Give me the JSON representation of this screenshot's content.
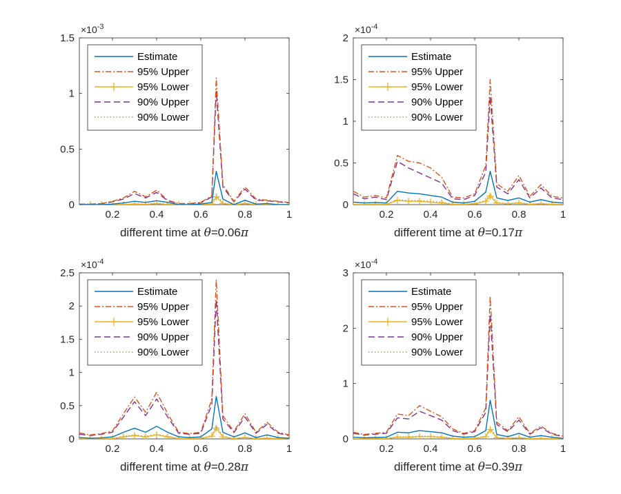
{
  "colors": {
    "estimate": "#0072BD",
    "upper95": "#D95319",
    "lower95": "#EDB120",
    "upper90": "#7E2F8E",
    "lower90": "#A2A36A",
    "axis": "#262626",
    "background": "#ffffff"
  },
  "legend_entries": [
    "Estimate",
    "95% Upper",
    "95% Lower",
    "90% Upper",
    "90% Lower"
  ],
  "x_axis": {
    "range": [
      0.05,
      1.0
    ],
    "ticks": [
      0.2,
      0.4,
      0.6,
      0.8,
      1
    ],
    "tick_labels": [
      "0.2",
      "0.4",
      "0.6",
      "0.8",
      "1"
    ],
    "points": [
      0.05,
      0.1,
      0.15,
      0.2,
      0.25,
      0.3,
      0.35,
      0.4,
      0.45,
      0.5,
      0.55,
      0.6,
      0.65,
      0.67,
      0.7,
      0.75,
      0.8,
      0.85,
      0.9,
      0.95,
      1.0
    ]
  },
  "chart_data": [
    {
      "type": "line",
      "xlabel_prefix": "different time at ",
      "theta_symbol": "θ",
      "theta_value": "=0.06",
      "pi_symbol": "π",
      "exponent_base": "×10",
      "exponent_power": "-3",
      "ylim": [
        0,
        1.5
      ],
      "y_ticks": [
        0,
        0.5,
        1,
        1.5
      ],
      "y_tick_labels": [
        "0",
        "0.5",
        "1",
        "1.5"
      ],
      "series": [
        {
          "name": "Estimate",
          "values": [
            0,
            0,
            0,
            0.005,
            0.015,
            0.03,
            0.02,
            0.035,
            0.02,
            0,
            0,
            0.005,
            0.02,
            0.3,
            0.05,
            0,
            0.04,
            0.005,
            0.01,
            0,
            0
          ]
        },
        {
          "name": "95% Upper",
          "values": [
            0.005,
            0.005,
            0.01,
            0.03,
            0.06,
            0.12,
            0.07,
            0.13,
            0.04,
            0.01,
            0.01,
            0.02,
            0.08,
            1.14,
            0.18,
            0.03,
            0.16,
            0.05,
            0.04,
            0.03,
            0.02
          ]
        },
        {
          "name": "95% Lower",
          "values": [
            0,
            0,
            0,
            0,
            0,
            0.005,
            0.002,
            0.01,
            0.002,
            0,
            0,
            0,
            0.005,
            0.07,
            0.01,
            0,
            0.01,
            0,
            0,
            0,
            0
          ]
        },
        {
          "name": "90% Upper",
          "values": [
            0.004,
            0.004,
            0.008,
            0.025,
            0.05,
            0.1,
            0.06,
            0.11,
            0.035,
            0.008,
            0.008,
            0.015,
            0.07,
            1.02,
            0.16,
            0.025,
            0.14,
            0.04,
            0.035,
            0.025,
            0.015
          ]
        },
        {
          "name": "90% Lower",
          "values": [
            0,
            0,
            0,
            0.001,
            0.003,
            0.008,
            0.005,
            0.012,
            0.005,
            0,
            0,
            0.001,
            0.007,
            0.09,
            0.015,
            0.001,
            0.012,
            0.002,
            0.002,
            0.001,
            0
          ]
        }
      ]
    },
    {
      "type": "line",
      "xlabel_prefix": "different time at ",
      "theta_symbol": "θ",
      "theta_value": "=0.17",
      "pi_symbol": "π",
      "exponent_base": "×10",
      "exponent_power": "-4",
      "ylim": [
        0,
        2
      ],
      "y_ticks": [
        0,
        0.5,
        1,
        1.5,
        2
      ],
      "y_tick_labels": [
        "0",
        "0.5",
        "1",
        "1.5",
        "2"
      ],
      "series": [
        {
          "name": "Estimate",
          "values": [
            0.03,
            0.02,
            0.025,
            0.02,
            0.16,
            0.14,
            0.13,
            0.11,
            0.09,
            0.03,
            0.02,
            0.04,
            0.15,
            0.4,
            0.08,
            0.05,
            0.08,
            0.03,
            0.06,
            0.03,
            0.02
          ]
        },
        {
          "name": "95% Upper",
          "values": [
            0.16,
            0.09,
            0.11,
            0.08,
            0.59,
            0.52,
            0.5,
            0.44,
            0.33,
            0.09,
            0.08,
            0.13,
            0.47,
            1.5,
            0.25,
            0.16,
            0.35,
            0.1,
            0.24,
            0.1,
            0.08
          ]
        },
        {
          "name": "95% Lower",
          "values": [
            0,
            0,
            0.005,
            0.005,
            0.05,
            0.04,
            0.04,
            0.03,
            0.02,
            0.005,
            0.005,
            0.01,
            0.04,
            0.1,
            0.02,
            0.01,
            0.02,
            0.005,
            0.01,
            0.005,
            0
          ]
        },
        {
          "name": "90% Upper",
          "values": [
            0.13,
            0.07,
            0.09,
            0.06,
            0.52,
            0.44,
            0.38,
            0.32,
            0.26,
            0.07,
            0.06,
            0.11,
            0.39,
            1.3,
            0.21,
            0.13,
            0.3,
            0.08,
            0.2,
            0.08,
            0.06
          ]
        },
        {
          "name": "90% Lower",
          "values": [
            0.005,
            0.003,
            0.006,
            0.006,
            0.06,
            0.05,
            0.05,
            0.04,
            0.03,
            0.006,
            0.006,
            0.015,
            0.05,
            0.13,
            0.025,
            0.012,
            0.025,
            0.006,
            0.012,
            0.006,
            0.002
          ]
        }
      ]
    },
    {
      "type": "line",
      "xlabel_prefix": "different time at ",
      "theta_symbol": "θ",
      "theta_value": "=0.28",
      "pi_symbol": "π",
      "exponent_base": "×10",
      "exponent_power": "-4",
      "ylim": [
        0,
        2.5
      ],
      "y_ticks": [
        0,
        0.5,
        1,
        1.5,
        2,
        2.5
      ],
      "y_tick_labels": [
        "0",
        "0.5",
        "1",
        "1.5",
        "2",
        "2.5"
      ],
      "series": [
        {
          "name": "Estimate",
          "values": [
            0.02,
            0.01,
            0.015,
            0.03,
            0.1,
            0.16,
            0.1,
            0.19,
            0.1,
            0.03,
            0.02,
            0.03,
            0.15,
            0.64,
            0.1,
            0.03,
            0.09,
            0.02,
            0.06,
            0.02,
            0.01
          ]
        },
        {
          "name": "95% Upper",
          "values": [
            0.09,
            0.06,
            0.08,
            0.12,
            0.38,
            0.63,
            0.4,
            0.7,
            0.38,
            0.1,
            0.08,
            0.1,
            0.6,
            2.4,
            0.35,
            0.11,
            0.38,
            0.1,
            0.25,
            0.1,
            0.06
          ]
        },
        {
          "name": "95% Lower",
          "values": [
            0,
            0,
            0,
            0.005,
            0.03,
            0.05,
            0.03,
            0.06,
            0.03,
            0.005,
            0.005,
            0.01,
            0.04,
            0.16,
            0.03,
            0.005,
            0.02,
            0.005,
            0.01,
            0.005,
            0
          ]
        },
        {
          "name": "90% Upper",
          "values": [
            0.07,
            0.05,
            0.07,
            0.1,
            0.33,
            0.56,
            0.35,
            0.6,
            0.33,
            0.085,
            0.07,
            0.085,
            0.52,
            2.1,
            0.3,
            0.095,
            0.33,
            0.085,
            0.22,
            0.085,
            0.05
          ]
        },
        {
          "name": "90% Lower",
          "values": [
            0.002,
            0.001,
            0.002,
            0.006,
            0.04,
            0.06,
            0.04,
            0.07,
            0.04,
            0.006,
            0.006,
            0.012,
            0.05,
            0.2,
            0.035,
            0.006,
            0.025,
            0.006,
            0.012,
            0.006,
            0.001
          ]
        }
      ]
    },
    {
      "type": "line",
      "xlabel_prefix": "different time at ",
      "theta_symbol": "θ",
      "theta_value": "=0.39",
      "pi_symbol": "π",
      "exponent_base": "×10",
      "exponent_power": "-4",
      "ylim": [
        0,
        3
      ],
      "y_ticks": [
        0,
        1,
        2,
        3
      ],
      "y_tick_labels": [
        "0",
        "1",
        "2",
        "3"
      ],
      "series": [
        {
          "name": "Estimate",
          "values": [
            0.03,
            0.02,
            0.025,
            0.03,
            0.12,
            0.11,
            0.15,
            0.13,
            0.11,
            0.05,
            0.03,
            0.04,
            0.15,
            0.7,
            0.08,
            0.04,
            0.1,
            0.03,
            0.06,
            0.03,
            0.01
          ]
        },
        {
          "name": "95% Upper",
          "values": [
            0.12,
            0.08,
            0.1,
            0.12,
            0.45,
            0.42,
            0.6,
            0.5,
            0.4,
            0.18,
            0.1,
            0.15,
            0.56,
            2.58,
            0.3,
            0.15,
            0.4,
            0.1,
            0.23,
            0.1,
            0.05
          ]
        },
        {
          "name": "95% Lower",
          "values": [
            0,
            0,
            0.005,
            0.005,
            0.03,
            0.03,
            0.04,
            0.04,
            0.03,
            0.01,
            0.005,
            0.01,
            0.04,
            0.17,
            0.02,
            0.01,
            0.02,
            0.005,
            0.01,
            0.005,
            0
          ]
        },
        {
          "name": "90% Upper",
          "values": [
            0.1,
            0.07,
            0.085,
            0.1,
            0.38,
            0.36,
            0.5,
            0.42,
            0.34,
            0.15,
            0.085,
            0.13,
            0.48,
            2.25,
            0.26,
            0.13,
            0.34,
            0.085,
            0.2,
            0.085,
            0.04
          ]
        },
        {
          "name": "90% Lower",
          "values": [
            0.003,
            0.002,
            0.006,
            0.006,
            0.04,
            0.04,
            0.05,
            0.05,
            0.04,
            0.012,
            0.006,
            0.012,
            0.05,
            0.21,
            0.025,
            0.012,
            0.025,
            0.006,
            0.012,
            0.006,
            0.001
          ]
        }
      ]
    }
  ]
}
